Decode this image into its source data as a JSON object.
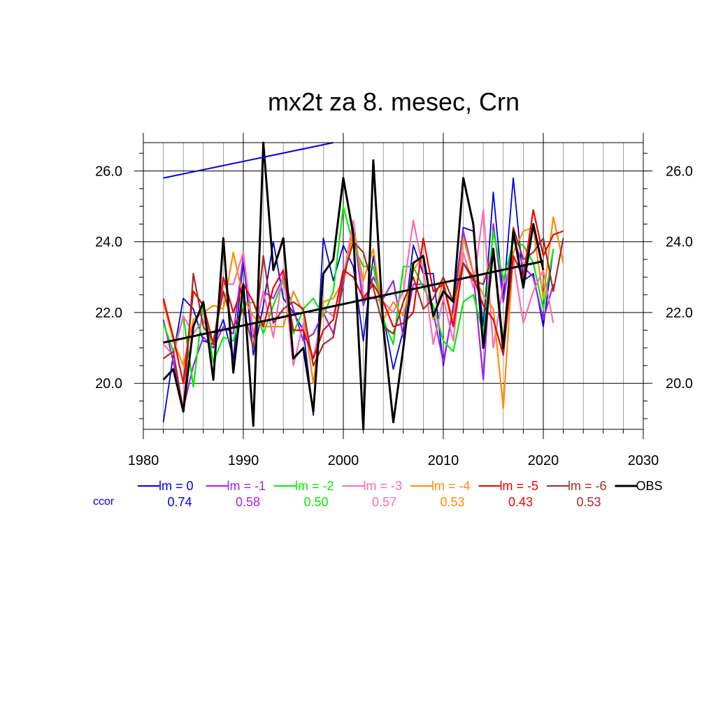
{
  "chart_data": {
    "type": "line",
    "title": "mx2t za 8. mesec, Crn",
    "xlabel": "",
    "ylabel": "",
    "xlim": [
      1980,
      2030
    ],
    "ylim": [
      18.7,
      26.8
    ],
    "xticks": [
      1980,
      1990,
      2000,
      2010,
      2020,
      2030
    ],
    "xtick_labels": [
      "1980",
      "1990",
      "2000",
      "2010",
      "2020",
      "2030"
    ],
    "yticks": [
      20.0,
      22.0,
      24.0,
      26.0
    ],
    "ytick_labels": [
      "20.0",
      "22.0",
      "24.0",
      "26.0"
    ],
    "grid": true,
    "legend_position": "bottom",
    "ccor_label": "ccor",
    "series": [
      {
        "name": "lm = 0",
        "color": "#0000dd",
        "ccor": "0.74",
        "x0": 1982,
        "values": [
          18.9,
          20.8,
          22.4,
          22.1,
          21.2,
          21.1,
          21.8,
          20.7,
          23.5,
          20.8,
          22.2,
          24.0,
          22.4,
          22.0,
          21.5,
          19.1,
          24.1,
          22.9,
          23.9,
          23.3,
          21.2,
          23.6,
          21.9,
          20.4,
          21.5,
          23.9,
          23.1,
          23.1,
          20.5,
          22.2,
          24.4,
          24.3,
          21.6,
          25.4,
          22.4,
          25.8,
          22.9,
          23.1,
          21.6,
          23.8
        ]
      },
      {
        "name": "lm = -1",
        "color": "#a020f0",
        "ccor": "0.58",
        "x0": 1982,
        "values": [
          21.8,
          20.6,
          19.3,
          20.5,
          21.3,
          21.0,
          21.6,
          21.4,
          23.6,
          21.3,
          22.6,
          22.4,
          23.0,
          22.1,
          21.2,
          21.4,
          22.0,
          21.4,
          22.8,
          24.4,
          22.2,
          23.0,
          22.4,
          22.9,
          21.3,
          22.8,
          22.8,
          22.0,
          20.6,
          22.1,
          24.3,
          23.1,
          20.1,
          24.5,
          22.3,
          24.1,
          23.3,
          23.0,
          21.8,
          22.8
        ]
      },
      {
        "name": "lm = -2",
        "color": "#00ee00",
        "ccor": "0.50",
        "x0": 1982,
        "values": [
          21.7,
          20.9,
          21.9,
          19.9,
          22.3,
          20.6,
          21.3,
          21.2,
          22.2,
          22.3,
          21.4,
          22.2,
          22.9,
          21.4,
          22.1,
          22.4,
          21.9,
          22.6,
          25.0,
          23.9,
          23.3,
          23.3,
          21.8,
          21.1,
          23.3,
          23.3,
          22.7,
          22.2,
          21.2,
          20.9,
          22.3,
          22.5,
          21.4,
          24.3,
          22.9,
          24.0,
          23.9,
          23.4,
          22.1,
          23.8
        ]
      },
      {
        "name": "lm = -3",
        "color": "#ff69b4",
        "ccor": "0.57",
        "x0": 1982,
        "values": [
          21.1,
          20.8,
          21.9,
          21.4,
          21.8,
          21.1,
          22.8,
          22.8,
          23.7,
          21.4,
          22.6,
          21.3,
          23.2,
          20.5,
          21.7,
          20.7,
          22.1,
          21.9,
          23.0,
          24.6,
          22.5,
          22.4,
          22.3,
          22.0,
          22.6,
          24.6,
          23.2,
          21.1,
          22.4,
          21.2,
          23.7,
          22.7,
          24.9,
          21.0,
          22.8,
          23.5,
          21.7,
          22.6,
          23.2,
          21.7
        ]
      },
      {
        "name": "lm = -4",
        "color": "#ff8c00",
        "ccor": "0.53",
        "x0": 1982,
        "values": [
          22.3,
          21.2,
          20.5,
          21.8,
          22.0,
          22.2,
          22.1,
          23.7,
          22.4,
          21.9,
          21.6,
          21.6,
          21.6,
          22.6,
          22.0,
          20.0,
          22.3,
          22.4,
          22.9,
          24.3,
          22.9,
          23.8,
          21.8,
          22.3,
          21.9,
          23.2,
          23.6,
          21.8,
          22.9,
          21.7,
          24.1,
          23.1,
          22.5,
          22.1,
          19.3,
          23.7,
          24.3,
          24.4,
          22.4,
          24.7,
          23.4
        ]
      },
      {
        "name": "lm = -5",
        "color": "#ee0000",
        "ccor": "0.43",
        "x0": 1982,
        "values": [
          22.4,
          21.3,
          20.0,
          22.6,
          22.2,
          21.1,
          23.0,
          22.0,
          22.8,
          22.3,
          21.6,
          22.7,
          23.2,
          21.5,
          21.5,
          20.7,
          21.5,
          21.8,
          23.2,
          23.0,
          22.4,
          22.8,
          22.3,
          21.6,
          21.7,
          22.0,
          24.1,
          22.6,
          22.8,
          21.6,
          23.4,
          23.0,
          22.2,
          21.8,
          20.8,
          23.6,
          23.0,
          24.9,
          23.6,
          24.2,
          24.3
        ]
      },
      {
        "name": "lm = -6",
        "color": "#a52a2a",
        "ccor": "0.53",
        "x0": 1982,
        "values": [
          20.7,
          20.9,
          19.2,
          23.1,
          21.6,
          21.2,
          22.6,
          21.6,
          22.1,
          21.0,
          23.6,
          21.7,
          22.1,
          22.3,
          22.1,
          20.5,
          21.1,
          21.3,
          23.0,
          24.0,
          23.7,
          22.7,
          21.6,
          21.4,
          22.3,
          23.0,
          22.1,
          22.4,
          23.0,
          22.3,
          23.4,
          22.9,
          22.8,
          23.7,
          20.8,
          24.4,
          23.5,
          23.7,
          24.1,
          22.6,
          24.1
        ]
      },
      {
        "name": "OBS",
        "color": "#000000",
        "ccor": "",
        "x0": 1982,
        "values": [
          20.1,
          20.4,
          19.2,
          21.6,
          22.3,
          20.1,
          24.1,
          20.3,
          22.8,
          18.8,
          26.8,
          23.2,
          24.1,
          20.7,
          21.0,
          19.2,
          23.1,
          23.5,
          25.8,
          24.2,
          18.7,
          26.3,
          21.6,
          18.9,
          21.0,
          23.4,
          23.6,
          21.9,
          22.6,
          22.3,
          25.8,
          24.5,
          21.0,
          23.8,
          21.0,
          24.3,
          22.7,
          24.5,
          23.2
        ]
      }
    ],
    "trend_lines": [
      {
        "name": "lm = 0 trend",
        "color": "#0000dd",
        "x": [
          1982,
          1999
        ],
        "y": [
          25.8,
          26.8
        ]
      },
      {
        "name": "OBS trend",
        "color": "#000000",
        "x": [
          1982,
          2020
        ],
        "y": [
          21.15,
          23.45
        ]
      }
    ]
  }
}
